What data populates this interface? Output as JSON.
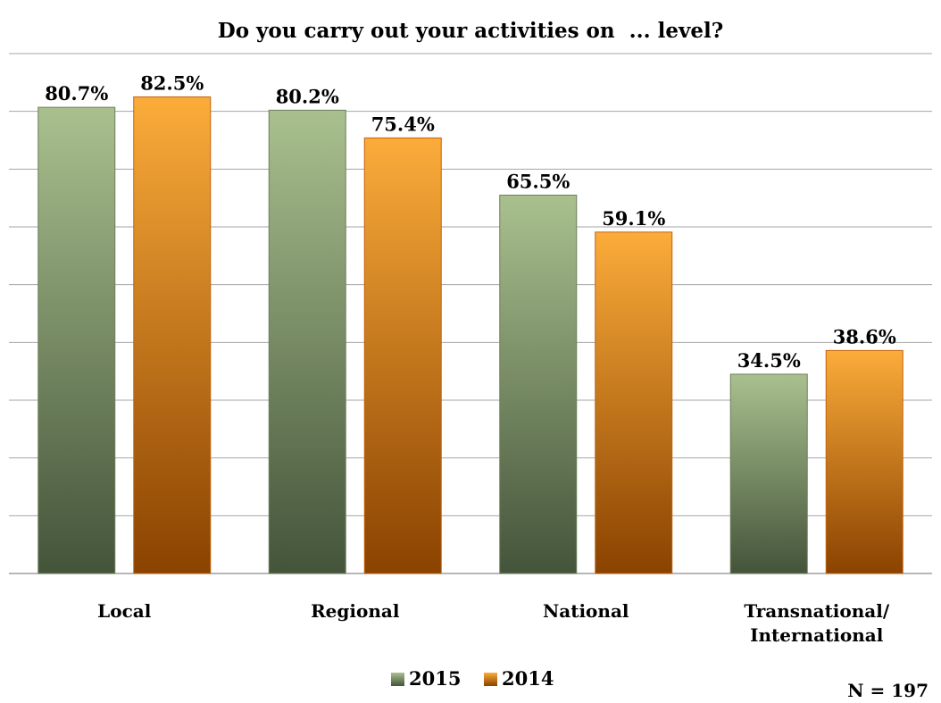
{
  "chart_data": {
    "type": "bar",
    "title": "Do you carry out your activities on  ... level?",
    "xlabel": "",
    "ylabel": "",
    "categories": [
      [
        "Local"
      ],
      [
        "Regional"
      ],
      [
        "National"
      ],
      [
        "Transnational/",
        "International"
      ]
    ],
    "series": [
      {
        "name": "2015",
        "values": [
          80.7,
          80.2,
          65.5,
          34.5
        ],
        "labels": [
          "80.7%",
          "80.2%",
          "65.5%",
          "34.5%"
        ],
        "color_top": "#a9c08e",
        "color_bottom": "#44543a"
      },
      {
        "name": "2014",
        "values": [
          82.5,
          75.4,
          59.1,
          38.6
        ],
        "labels": [
          "82.5%",
          "75.4%",
          "59.1%",
          "38.6%"
        ],
        "color_top": "#fbac3a",
        "color_bottom": "#8a4200"
      }
    ],
    "ylim": [
      0,
      90
    ],
    "grid": true,
    "legend": "bottom",
    "note": "N = 197"
  }
}
